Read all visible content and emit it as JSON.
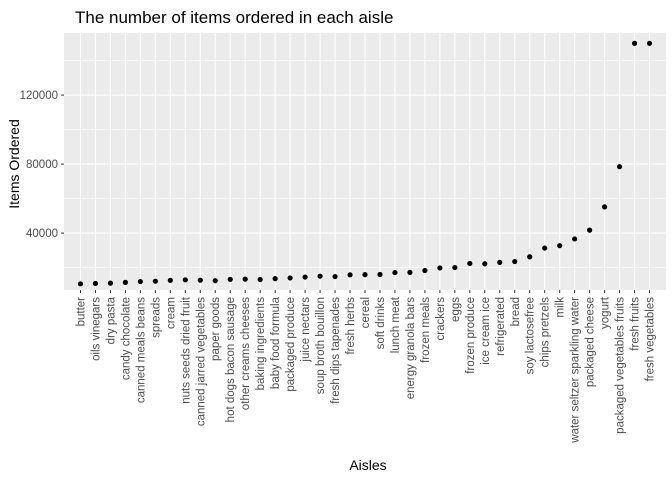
{
  "chart_data": {
    "type": "scatter",
    "title": "The number of items ordered in each aisle",
    "xlabel": "Aisles",
    "ylabel": "Items Ordered",
    "ylim": [
      7000,
      156000
    ],
    "yticks": [
      40000,
      80000,
      120000
    ],
    "ytick_labels": [
      "40000",
      "80000",
      "120000"
    ],
    "grid": true,
    "colors": {
      "panel": "#ebebeb",
      "grid": "#ffffff",
      "point": "#000000"
    },
    "categories": [
      "butter",
      "oils vinegars",
      "dry pasta",
      "candy chocolate",
      "canned meals beans",
      "spreads",
      "cream",
      "nuts seeds dried fruit",
      "canned jarred vegetables",
      "paper goods",
      "hot dogs bacon sausage",
      "other creams cheeses",
      "baking ingredients",
      "baby food formula",
      "packaged produce",
      "juice nectars",
      "soup broth bouillon",
      "fresh dips tapenades",
      "fresh herbs",
      "cereal",
      "soft drinks",
      "lunch meat",
      "energy granola bars",
      "frozen meals",
      "crackers",
      "eggs",
      "frozen produce",
      "ice cream ice",
      "refrigerated",
      "bread",
      "soy lactosefree",
      "chips pretzels",
      "milk",
      "water seltzer sparkling water",
      "packaged cheese",
      "yogurt",
      "packaged vegetables fruits",
      "fresh fruits",
      "fresh vegetables"
    ],
    "values": [
      10575,
      10800,
      11000,
      11400,
      11900,
      12100,
      12600,
      12900,
      12700,
      12400,
      13200,
      13300,
      13100,
      13600,
      14000,
      14500,
      15000,
      14800,
      15800,
      15900,
      16000,
      17100,
      17200,
      18300,
      19800,
      20000,
      22400,
      22200,
      23000,
      23500,
      26200,
      31300,
      32700,
      36600,
      41700,
      55200,
      78500,
      150000,
      150000
    ]
  }
}
